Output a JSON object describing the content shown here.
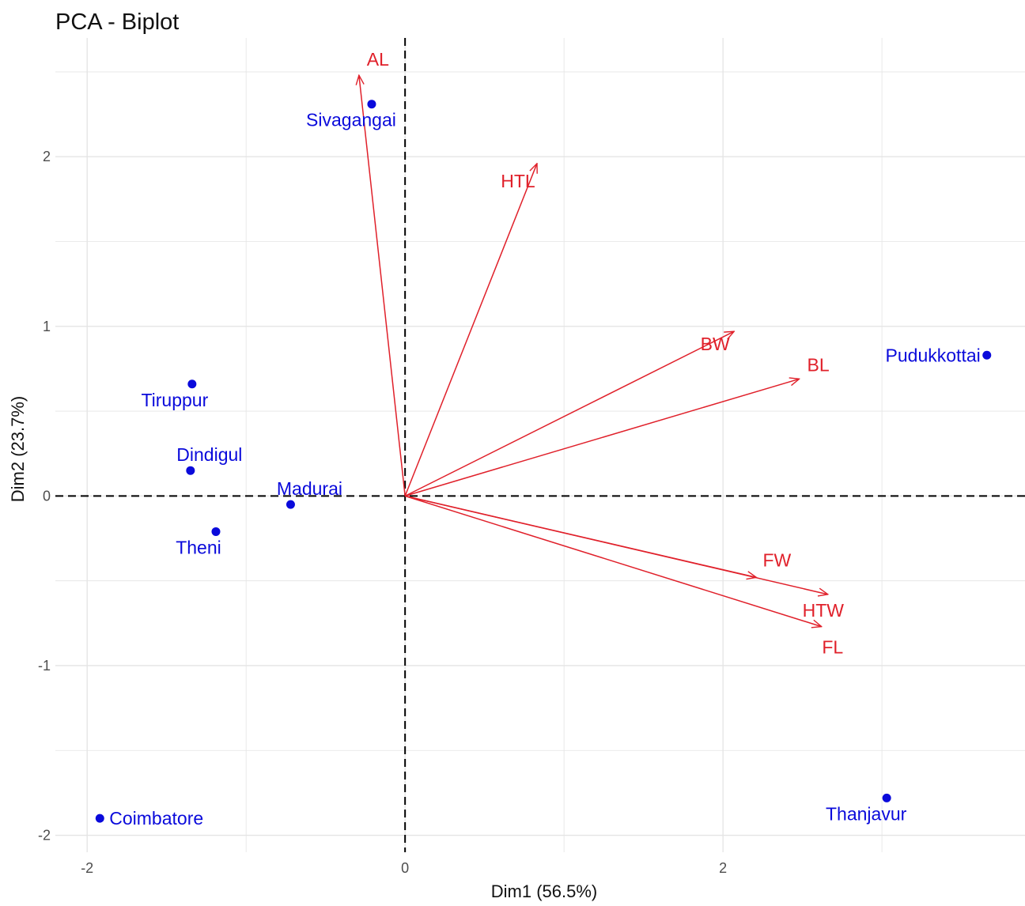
{
  "chart_data": {
    "type": "scatter",
    "title": "PCA - Biplot",
    "xlabel": "Dim1 (56.5%)",
    "ylabel": "Dim2 (23.7%)",
    "xlim": [
      -2.2,
      3.9
    ],
    "ylim": [
      -2.1,
      2.7
    ],
    "x_ticks": [
      {
        "value": -2,
        "label": "-2"
      },
      {
        "value": 0,
        "label": "0"
      },
      {
        "value": 2,
        "label": "2"
      }
    ],
    "y_ticks": [
      {
        "value": -2,
        "label": "-2"
      },
      {
        "value": -1,
        "label": "-1"
      },
      {
        "value": 0,
        "label": "0"
      },
      {
        "value": 1,
        "label": "1"
      },
      {
        "value": 2,
        "label": "2"
      }
    ],
    "grid": true,
    "reference_lines": {
      "x": 0,
      "y": 0,
      "style": "dashed"
    },
    "individuals": [
      {
        "label": "Sivagangai",
        "x": -0.21,
        "y": 2.31
      },
      {
        "label": "Pudukkottai",
        "x": 3.66,
        "y": 0.83
      },
      {
        "label": "Tiruppur",
        "x": -1.34,
        "y": 0.66
      },
      {
        "label": "Dindigul",
        "x": -1.35,
        "y": 0.15
      },
      {
        "label": "Madurai",
        "x": -0.72,
        "y": -0.05
      },
      {
        "label": "Theni",
        "x": -1.19,
        "y": -0.21
      },
      {
        "label": "Coimbatore",
        "x": -1.92,
        "y": -1.9
      },
      {
        "label": "Thanjavur",
        "x": 3.03,
        "y": -1.78
      }
    ],
    "variables": [
      {
        "label": "AL",
        "x": -0.29,
        "y": 2.48
      },
      {
        "label": "HTL",
        "x": 0.83,
        "y": 1.96
      },
      {
        "label": "BW",
        "x": 2.07,
        "y": 0.97
      },
      {
        "label": "BL",
        "x": 2.48,
        "y": 0.69
      },
      {
        "label": "FW",
        "x": 2.21,
        "y": -0.48
      },
      {
        "label": "HTW",
        "x": 2.66,
        "y": -0.58
      },
      {
        "label": "FL",
        "x": 2.62,
        "y": -0.77
      }
    ],
    "colors": {
      "individuals": "#0a0adb",
      "variables": "#e0202a",
      "grid": "#e4e4e4",
      "axis_text": "#4d4d4d"
    }
  }
}
